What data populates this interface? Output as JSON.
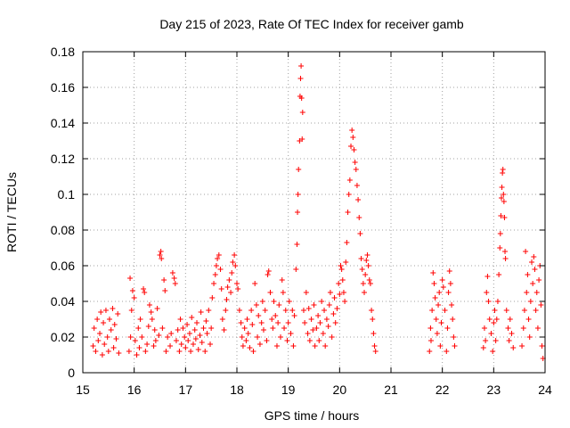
{
  "chart_data": {
    "type": "scatter",
    "title": "Day 215 of 2023, Rate Of TEC Index for receiver gamb",
    "xlabel": "GPS time / hours",
    "ylabel": "ROTI / TECUs",
    "xlim": [
      15,
      24
    ],
    "ylim": [
      0,
      0.18
    ],
    "x_ticks": [
      15,
      16,
      17,
      18,
      19,
      20,
      21,
      22,
      23,
      24
    ],
    "x_tick_labels": [
      "15",
      "16",
      "17",
      "18",
      "19",
      "20",
      "21",
      "22",
      "23",
      "24"
    ],
    "y_ticks": [
      0,
      0.02,
      0.04,
      0.06,
      0.08,
      0.1,
      0.12,
      0.14,
      0.16,
      0.18
    ],
    "y_tick_labels": [
      "0",
      "0.02",
      "0.04",
      "0.06",
      "0.08",
      "0.1",
      "0.12",
      "0.14",
      "0.16",
      "0.18"
    ],
    "grid": true,
    "marker": "+",
    "marker_color": "#ff0000",
    "series": [
      {
        "name": "ROTI",
        "points": [
          [
            15.2,
            0.015
          ],
          [
            15.22,
            0.025
          ],
          [
            15.25,
            0.012
          ],
          [
            15.28,
            0.03
          ],
          [
            15.3,
            0.018
          ],
          [
            15.33,
            0.022
          ],
          [
            15.35,
            0.034
          ],
          [
            15.38,
            0.01
          ],
          [
            15.4,
            0.028
          ],
          [
            15.42,
            0.016
          ],
          [
            15.45,
            0.035
          ],
          [
            15.48,
            0.02
          ],
          [
            15.5,
            0.012
          ],
          [
            15.52,
            0.03
          ],
          [
            15.55,
            0.024
          ],
          [
            15.58,
            0.036
          ],
          [
            15.6,
            0.014
          ],
          [
            15.62,
            0.027
          ],
          [
            15.65,
            0.019
          ],
          [
            15.68,
            0.033
          ],
          [
            15.7,
            0.011
          ],
          [
            15.9,
            0.012
          ],
          [
            15.92,
            0.053
          ],
          [
            15.93,
            0.02
          ],
          [
            15.95,
            0.035
          ],
          [
            15.97,
            0.046
          ],
          [
            16.0,
            0.042
          ],
          [
            16.02,
            0.018
          ],
          [
            16.05,
            0.01
          ],
          [
            16.08,
            0.025
          ],
          [
            16.1,
            0.014
          ],
          [
            16.12,
            0.03
          ],
          [
            16.15,
            0.02
          ],
          [
            16.18,
            0.047
          ],
          [
            16.2,
            0.045
          ],
          [
            16.22,
            0.012
          ],
          [
            16.25,
            0.016
          ],
          [
            16.28,
            0.026
          ],
          [
            16.3,
            0.038
          ],
          [
            16.33,
            0.034
          ],
          [
            16.35,
            0.03
          ],
          [
            16.38,
            0.015
          ],
          [
            16.4,
            0.024
          ],
          [
            16.42,
            0.018
          ],
          [
            16.45,
            0.036
          ],
          [
            16.48,
            0.021
          ],
          [
            16.5,
            0.066
          ],
          [
            16.52,
            0.068
          ],
          [
            16.53,
            0.064
          ],
          [
            16.55,
            0.025
          ],
          [
            16.58,
            0.052
          ],
          [
            16.6,
            0.046
          ],
          [
            16.62,
            0.012
          ],
          [
            16.65,
            0.02
          ],
          [
            16.7,
            0.015
          ],
          [
            16.72,
            0.022
          ],
          [
            16.75,
            0.056
          ],
          [
            16.78,
            0.053
          ],
          [
            16.8,
            0.05
          ],
          [
            16.82,
            0.018
          ],
          [
            16.85,
            0.024
          ],
          [
            16.88,
            0.012
          ],
          [
            16.9,
            0.03
          ],
          [
            16.92,
            0.016
          ],
          [
            16.95,
            0.025
          ],
          [
            16.98,
            0.02
          ],
          [
            17.0,
            0.014
          ],
          [
            17.03,
            0.027
          ],
          [
            17.05,
            0.018
          ],
          [
            17.08,
            0.022
          ],
          [
            17.1,
            0.012
          ],
          [
            17.12,
            0.031
          ],
          [
            17.15,
            0.016
          ],
          [
            17.18,
            0.024
          ],
          [
            17.2,
            0.019
          ],
          [
            17.22,
            0.028
          ],
          [
            17.25,
            0.013
          ],
          [
            17.28,
            0.021
          ],
          [
            17.3,
            0.034
          ],
          [
            17.32,
            0.017
          ],
          [
            17.35,
            0.025
          ],
          [
            17.38,
            0.012
          ],
          [
            17.4,
            0.029
          ],
          [
            17.42,
            0.022
          ],
          [
            17.45,
            0.035
          ],
          [
            17.48,
            0.016
          ],
          [
            17.5,
            0.025
          ],
          [
            17.52,
            0.042
          ],
          [
            17.55,
            0.05
          ],
          [
            17.58,
            0.055
          ],
          [
            17.6,
            0.06
          ],
          [
            17.62,
            0.064
          ],
          [
            17.65,
            0.066
          ],
          [
            17.68,
            0.058
          ],
          [
            17.7,
            0.047
          ],
          [
            17.72,
            0.03
          ],
          [
            17.75,
            0.024
          ],
          [
            17.78,
            0.035
          ],
          [
            17.8,
            0.041
          ],
          [
            17.82,
            0.048
          ],
          [
            17.85,
            0.052
          ],
          [
            17.88,
            0.045
          ],
          [
            17.9,
            0.056
          ],
          [
            17.92,
            0.062
          ],
          [
            17.95,
            0.066
          ],
          [
            17.97,
            0.06
          ],
          [
            18.0,
            0.05
          ],
          [
            18.02,
            0.047
          ],
          [
            18.05,
            0.035
          ],
          [
            18.08,
            0.028
          ],
          [
            18.1,
            0.02
          ],
          [
            18.12,
            0.015
          ],
          [
            18.15,
            0.025
          ],
          [
            18.18,
            0.018
          ],
          [
            18.2,
            0.03
          ],
          [
            18.22,
            0.022
          ],
          [
            18.25,
            0.014
          ],
          [
            18.28,
            0.035
          ],
          [
            18.3,
            0.027
          ],
          [
            18.32,
            0.012
          ],
          [
            18.35,
            0.05
          ],
          [
            18.38,
            0.038
          ],
          [
            18.4,
            0.02
          ],
          [
            18.42,
            0.032
          ],
          [
            18.45,
            0.016
          ],
          [
            18.48,
            0.028
          ],
          [
            18.5,
            0.04
          ],
          [
            18.52,
            0.024
          ],
          [
            18.55,
            0.035
          ],
          [
            18.58,
            0.018
          ],
          [
            18.6,
            0.055
          ],
          [
            18.62,
            0.057
          ],
          [
            18.65,
            0.045
          ],
          [
            18.68,
            0.03
          ],
          [
            18.7,
            0.025
          ],
          [
            18.72,
            0.04
          ],
          [
            18.75,
            0.032
          ],
          [
            18.78,
            0.015
          ],
          [
            18.8,
            0.028
          ],
          [
            18.82,
            0.038
          ],
          [
            18.85,
            0.02
          ],
          [
            18.88,
            0.052
          ],
          [
            18.9,
            0.045
          ],
          [
            18.92,
            0.025
          ],
          [
            18.95,
            0.035
          ],
          [
            18.98,
            0.018
          ],
          [
            19.0,
            0.028
          ],
          [
            19.02,
            0.04
          ],
          [
            19.05,
            0.022
          ],
          [
            19.08,
            0.035
          ],
          [
            19.1,
            0.015
          ],
          [
            19.12,
            0.032
          ],
          [
            19.15,
            0.058
          ],
          [
            19.17,
            0.072
          ],
          [
            19.18,
            0.09
          ],
          [
            19.19,
            0.1
          ],
          [
            19.2,
            0.114
          ],
          [
            19.22,
            0.13
          ],
          [
            19.23,
            0.155
          ],
          [
            19.24,
            0.165
          ],
          [
            19.25,
            0.172
          ],
          [
            19.26,
            0.154
          ],
          [
            19.27,
            0.131
          ],
          [
            19.28,
            0.146
          ],
          [
            19.3,
            0.035
          ],
          [
            19.32,
            0.028
          ],
          [
            19.35,
            0.045
          ],
          [
            19.38,
            0.022
          ],
          [
            19.4,
            0.036
          ],
          [
            19.42,
            0.018
          ],
          [
            19.45,
            0.03
          ],
          [
            19.48,
            0.024
          ],
          [
            19.5,
            0.038
          ],
          [
            19.52,
            0.015
          ],
          [
            19.55,
            0.025
          ],
          [
            19.58,
            0.032
          ],
          [
            19.6,
            0.018
          ],
          [
            19.62,
            0.028
          ],
          [
            19.65,
            0.04
          ],
          [
            19.68,
            0.022
          ],
          [
            19.7,
            0.035
          ],
          [
            19.72,
            0.015
          ],
          [
            19.75,
            0.03
          ],
          [
            19.78,
            0.026
          ],
          [
            19.8,
            0.038
          ],
          [
            19.82,
            0.045
          ],
          [
            19.85,
            0.02
          ],
          [
            19.88,
            0.033
          ],
          [
            19.9,
            0.042
          ],
          [
            19.92,
            0.028
          ],
          [
            19.95,
            0.036
          ],
          [
            19.98,
            0.05
          ],
          [
            20.0,
            0.044
          ],
          [
            20.02,
            0.06
          ],
          [
            20.04,
            0.058
          ],
          [
            20.06,
            0.052
          ],
          [
            20.08,
            0.045
          ],
          [
            20.1,
            0.04
          ],
          [
            20.12,
            0.062
          ],
          [
            20.14,
            0.073
          ],
          [
            20.16,
            0.09
          ],
          [
            20.18,
            0.1
          ],
          [
            20.2,
            0.108
          ],
          [
            20.22,
            0.127
          ],
          [
            20.24,
            0.136
          ],
          [
            20.26,
            0.132
          ],
          [
            20.28,
            0.125
          ],
          [
            20.3,
            0.118
          ],
          [
            20.32,
            0.114
          ],
          [
            20.34,
            0.105
          ],
          [
            20.36,
            0.097
          ],
          [
            20.38,
            0.087
          ],
          [
            20.4,
            0.078
          ],
          [
            20.42,
            0.064
          ],
          [
            20.44,
            0.058
          ],
          [
            20.46,
            0.05
          ],
          [
            20.48,
            0.045
          ],
          [
            20.5,
            0.055
          ],
          [
            20.52,
            0.063
          ],
          [
            20.54,
            0.066
          ],
          [
            20.56,
            0.06
          ],
          [
            20.58,
            0.052
          ],
          [
            20.6,
            0.05
          ],
          [
            20.62,
            0.035
          ],
          [
            20.64,
            0.03
          ],
          [
            20.66,
            0.022
          ],
          [
            20.68,
            0.015
          ],
          [
            20.7,
            0.012
          ],
          [
            21.75,
            0.012
          ],
          [
            21.77,
            0.025
          ],
          [
            21.78,
            0.018
          ],
          [
            21.8,
            0.035
          ],
          [
            21.82,
            0.056
          ],
          [
            21.84,
            0.05
          ],
          [
            21.86,
            0.042
          ],
          [
            21.88,
            0.03
          ],
          [
            21.9,
            0.022
          ],
          [
            21.92,
            0.038
          ],
          [
            21.94,
            0.045
          ],
          [
            21.96,
            0.015
          ],
          [
            21.98,
            0.028
          ],
          [
            22.0,
            0.052
          ],
          [
            22.02,
            0.048
          ],
          [
            22.05,
            0.035
          ],
          [
            22.08,
            0.012
          ],
          [
            22.1,
            0.025
          ],
          [
            22.12,
            0.045
          ],
          [
            22.14,
            0.057
          ],
          [
            22.16,
            0.05
          ],
          [
            22.18,
            0.038
          ],
          [
            22.2,
            0.03
          ],
          [
            22.22,
            0.02
          ],
          [
            22.24,
            0.015
          ],
          [
            22.8,
            0.014
          ],
          [
            22.82,
            0.025
          ],
          [
            22.84,
            0.018
          ],
          [
            22.86,
            0.045
          ],
          [
            22.88,
            0.054
          ],
          [
            22.9,
            0.04
          ],
          [
            22.92,
            0.03
          ],
          [
            22.95,
            0.022
          ],
          [
            22.98,
            0.012
          ],
          [
            23.0,
            0.028
          ],
          [
            23.02,
            0.035
          ],
          [
            23.04,
            0.018
          ],
          [
            23.06,
            0.03
          ],
          [
            23.08,
            0.04
          ],
          [
            23.1,
            0.055
          ],
          [
            23.12,
            0.07
          ],
          [
            23.13,
            0.078
          ],
          [
            23.14,
            0.088
          ],
          [
            23.15,
            0.098
          ],
          [
            23.16,
            0.104
          ],
          [
            23.17,
            0.112
          ],
          [
            23.18,
            0.114
          ],
          [
            23.19,
            0.1
          ],
          [
            23.2,
            0.096
          ],
          [
            23.21,
            0.087
          ],
          [
            23.22,
            0.068
          ],
          [
            23.23,
            0.064
          ],
          [
            23.25,
            0.035
          ],
          [
            23.28,
            0.025
          ],
          [
            23.3,
            0.018
          ],
          [
            23.32,
            0.03
          ],
          [
            23.35,
            0.022
          ],
          [
            23.38,
            0.014
          ],
          [
            23.55,
            0.015
          ],
          [
            23.58,
            0.025
          ],
          [
            23.6,
            0.035
          ],
          [
            23.62,
            0.068
          ],
          [
            23.64,
            0.045
          ],
          [
            23.66,
            0.055
          ],
          [
            23.68,
            0.03
          ],
          [
            23.7,
            0.02
          ],
          [
            23.72,
            0.04
          ],
          [
            23.74,
            0.062
          ],
          [
            23.76,
            0.05
          ],
          [
            23.78,
            0.065
          ],
          [
            23.8,
            0.058
          ],
          [
            23.82,
            0.035
          ],
          [
            23.84,
            0.045
          ],
          [
            23.86,
            0.025
          ],
          [
            23.88,
            0.052
          ],
          [
            23.9,
            0.06
          ],
          [
            23.92,
            0.038
          ],
          [
            23.94,
            0.015
          ],
          [
            23.96,
            0.008
          ]
        ]
      }
    ]
  }
}
